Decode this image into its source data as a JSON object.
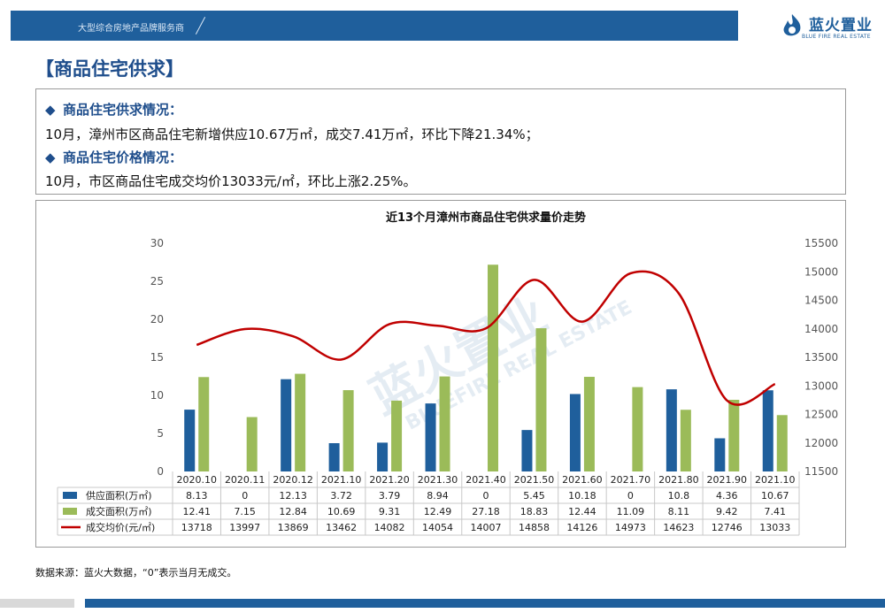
{
  "header": {
    "tagline": "大型综合房地产品牌服务商",
    "brand_name": "蓝火置业",
    "brand_en": "BLUE FIRE REAL ESTATE"
  },
  "page_title": "【商品住宅供求】",
  "summary": {
    "h1": "商品住宅供求情况：",
    "t1": "10月，漳州市区商品住宅新增供应10.67万㎡，成交7.41万㎡，环比下降21.34%；",
    "h2": "商品住宅价格情况：",
    "t2": "10月，市区商品住宅成交均价13033元/㎡，环比上涨2.25%。",
    "bullet": "◆"
  },
  "watermark": {
    "cn": "蓝火置业",
    "en": "BLUEFIRE REAL ESTATE"
  },
  "colors": {
    "supply": "#1f5f9c",
    "deal": "#9bbb59",
    "price": "#c00000",
    "accent": "#1f4e8c"
  },
  "chart_data": {
    "type": "bar",
    "title": "近13个月漳州市商品住宅供求量价走势",
    "categories": [
      "2020.10",
      "2020.11",
      "2020.12",
      "2021.10",
      "2021.20",
      "2021.30",
      "2021.40",
      "2021.50",
      "2021.60",
      "2021.70",
      "2021.80",
      "2021.90",
      "2021.10"
    ],
    "series": [
      {
        "name": "供应面积(万㎡)",
        "type": "bar",
        "axis": "left",
        "values": [
          8.13,
          0,
          12.13,
          3.72,
          3.79,
          8.94,
          0,
          5.45,
          10.18,
          0,
          10.8,
          4.36,
          10.67
        ]
      },
      {
        "name": "成交面积(万㎡)",
        "type": "bar",
        "axis": "left",
        "values": [
          12.41,
          7.15,
          12.84,
          10.69,
          9.31,
          12.49,
          27.18,
          18.83,
          12.44,
          11.09,
          8.11,
          9.42,
          7.41
        ]
      },
      {
        "name": "成交均价(元/㎡)",
        "type": "line",
        "axis": "right",
        "values": [
          13718,
          13997,
          13869,
          13462,
          14082,
          14054,
          14007,
          14858,
          14126,
          14973,
          14623,
          12746,
          13033
        ]
      }
    ],
    "ylim_left": [
      0,
      30
    ],
    "yticks_left": [
      0,
      5,
      10,
      15,
      20,
      25,
      30
    ],
    "ylim_right": [
      11500,
      15500
    ],
    "yticks_right": [
      11500,
      12000,
      12500,
      13000,
      13500,
      14000,
      14500,
      15000,
      15500
    ],
    "legend": "data-table",
    "grid": false
  },
  "source": "数据来源：蓝火大数据，“0”表示当月无成交。"
}
